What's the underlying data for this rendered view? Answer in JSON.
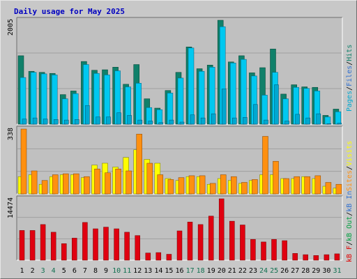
{
  "title": "Daily usage for May 2025",
  "colors": {
    "background": "#c8c8c8",
    "title": "#0000c0",
    "hits": "#10806a",
    "files": "#00c8f0",
    "pages": "#00a8d0",
    "visits": "#ffff00",
    "sites": "#ff9010",
    "kb_in": "#3070d0",
    "kb_out": "#00a040",
    "kb_f": "#e00000",
    "kbytes_bar": "#e00010",
    "weekend_label": "#107050",
    "day_label": "#000000"
  },
  "right_labels": {
    "top": [
      {
        "text": "Pages",
        "color": "#00a8d0"
      },
      {
        "text": "/",
        "color": "#000000"
      },
      {
        "text": "Files",
        "color": "#3070d0"
      },
      {
        "text": "/",
        "color": "#000000"
      },
      {
        "text": "Hits",
        "color": "#10806a"
      }
    ],
    "middle": [
      {
        "text": "Sites",
        "color": "#ff9010"
      },
      {
        "text": "/",
        "color": "#000000"
      },
      {
        "text": "Visits",
        "color": "#ffff00"
      }
    ],
    "bottom": [
      {
        "text": "kB F",
        "color": "#e00000"
      },
      {
        "text": "/",
        "color": "#000000"
      },
      {
        "text": "kB Out",
        "color": "#00a040"
      },
      {
        "text": "/",
        "color": "#000000"
      },
      {
        "text": "kB In",
        "color": "#3070d0"
      }
    ]
  },
  "chart_data": [
    {
      "type": "bar",
      "name": "hits-files-pages",
      "max_label": "2005",
      "ylim": [
        0,
        2005
      ],
      "categories": [
        "1",
        "2",
        "3",
        "4",
        "5",
        "6",
        "7",
        "8",
        "9",
        "10",
        "11",
        "12",
        "13",
        "14",
        "15",
        "16",
        "17",
        "18",
        "19",
        "20",
        "21",
        "22",
        "23",
        "24",
        "25",
        "26",
        "27",
        "28",
        "29",
        "30",
        "31"
      ],
      "series": [
        {
          "name": "Hits",
          "values": [
            1320,
            1020,
            1000,
            980,
            570,
            640,
            1210,
            1040,
            1050,
            1100,
            770,
            1150,
            490,
            310,
            650,
            1000,
            1490,
            1070,
            1140,
            2005,
            1200,
            1320,
            990,
            1090,
            1450,
            580,
            760,
            720,
            710,
            170,
            290
          ]
        },
        {
          "name": "Files",
          "values": [
            900,
            1000,
            970,
            950,
            490,
            590,
            1150,
            980,
            950,
            1030,
            720,
            790,
            320,
            280,
            600,
            890,
            1470,
            1020,
            1100,
            1880,
            1180,
            1250,
            930,
            560,
            1000,
            490,
            710,
            690,
            640,
            140,
            240
          ]
        },
        {
          "name": "Pages",
          "values": [
            100,
            120,
            100,
            90,
            80,
            90,
            360,
            140,
            140,
            220,
            170,
            80,
            60,
            30,
            80,
            40,
            180,
            120,
            200,
            680,
            120,
            130,
            380,
            80,
            760,
            60,
            190,
            120,
            200,
            10,
            20
          ]
        }
      ]
    },
    {
      "type": "bar",
      "name": "visits-sites",
      "max_label": "338",
      "ylim": [
        0,
        338
      ],
      "categories": [
        "1",
        "2",
        "3",
        "4",
        "5",
        "6",
        "7",
        "8",
        "9",
        "10",
        "11",
        "12",
        "13",
        "14",
        "15",
        "16",
        "17",
        "18",
        "19",
        "20",
        "21",
        "22",
        "23",
        "24",
        "25",
        "26",
        "27",
        "28",
        "29",
        "30",
        "31"
      ],
      "series": [
        {
          "name": "Visits",
          "values": [
            90,
            100,
            50,
            90,
            100,
            100,
            85,
            150,
            160,
            140,
            190,
            230,
            180,
            160,
            80,
            70,
            90,
            90,
            50,
            80,
            70,
            55,
            70,
            100,
            100,
            80,
            80,
            90,
            80,
            40,
            30
          ]
        },
        {
          "name": "Sites",
          "values": [
            338,
            120,
            70,
            100,
            105,
            105,
            90,
            130,
            110,
            130,
            120,
            312,
            160,
            100,
            75,
            85,
            95,
            95,
            55,
            100,
            90,
            60,
            75,
            300,
            170,
            80,
            90,
            90,
            95,
            60,
            50
          ]
        }
      ]
    },
    {
      "type": "bar",
      "name": "kbytes",
      "max_label": "14474",
      "ylim": [
        0,
        14474
      ],
      "categories": [
        "1",
        "2",
        "3",
        "4",
        "5",
        "6",
        "7",
        "8",
        "9",
        "10",
        "11",
        "12",
        "13",
        "14",
        "15",
        "16",
        "17",
        "18",
        "19",
        "20",
        "21",
        "22",
        "23",
        "24",
        "25",
        "26",
        "27",
        "28",
        "29",
        "30",
        "31"
      ],
      "series": [
        {
          "name": "kB F",
          "values": [
            7000,
            7000,
            8400,
            6600,
            3900,
            5200,
            8900,
            7400,
            7800,
            7400,
            6600,
            5800,
            1700,
            1800,
            1400,
            6900,
            9000,
            8400,
            10400,
            14474,
            9200,
            8300,
            4900,
            4300,
            4900,
            4600,
            1600,
            1300,
            1100,
            1300,
            1500
          ]
        }
      ]
    }
  ],
  "weekend_days": [
    "3",
    "4",
    "10",
    "11",
    "17",
    "18",
    "24",
    "25",
    "31"
  ]
}
